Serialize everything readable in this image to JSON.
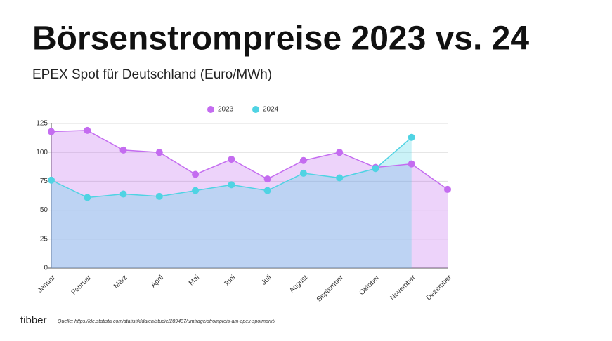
{
  "header": {
    "title": "Börsenstrompreise 2023 vs. 24",
    "subtitle": "EPEX Spot für Deutschland (Euro/MWh)"
  },
  "chart_data": {
    "type": "line",
    "categories": [
      "Januar",
      "Februar",
      "März",
      "April",
      "Mai",
      "Juni",
      "Juli",
      "August",
      "September",
      "Oktober",
      "November",
      "Dezember"
    ],
    "series": [
      {
        "name": "2023",
        "color": "#c46cf0",
        "values": [
          118,
          119,
          102,
          100,
          81,
          94,
          77,
          93,
          100,
          87,
          90,
          68
        ]
      },
      {
        "name": "2024",
        "color": "#4fd3e3",
        "values": [
          76,
          61,
          64,
          62,
          67,
          72,
          67,
          82,
          78,
          86,
          113,
          null
        ]
      }
    ],
    "ylim": [
      0,
      125
    ],
    "yticks": [
      0,
      25,
      50,
      75,
      100,
      125
    ],
    "grid": true,
    "legend": "top",
    "area": true
  },
  "footer": {
    "brand": "tibber",
    "source": "Quelle: https://de.statista.com/statistik/daten/studie/289437/umfrage/strompreis-am-epex-spotmarkt/"
  }
}
